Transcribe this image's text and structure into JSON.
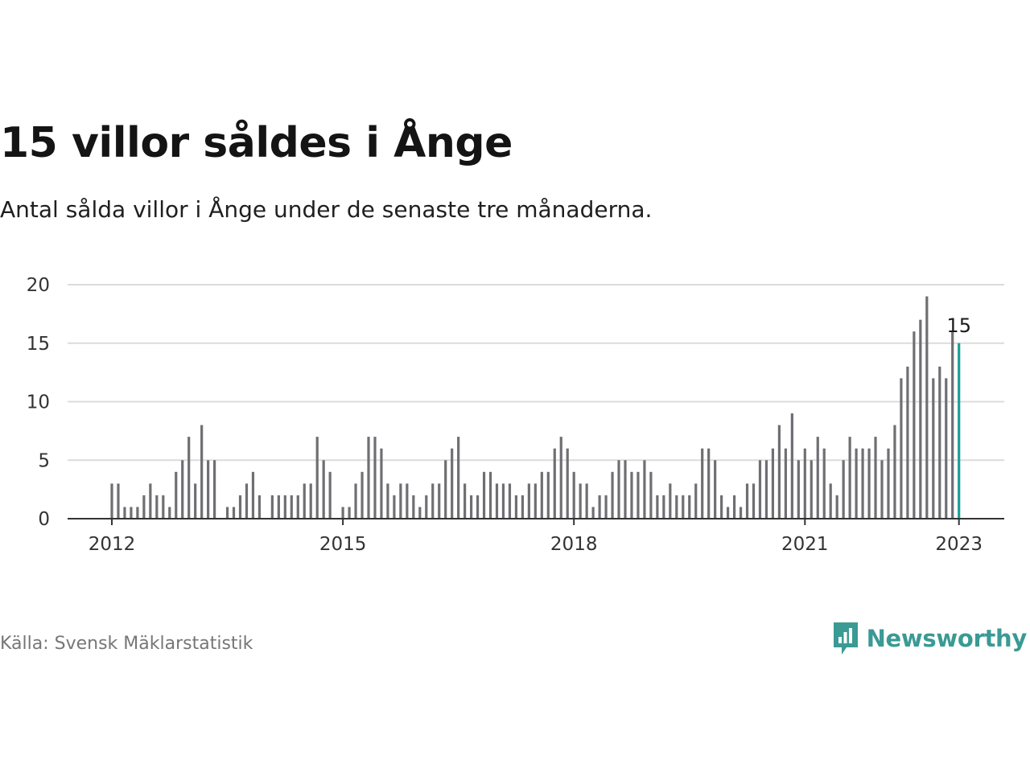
{
  "title": "15 villor såldes i Ånge",
  "subtitle": "Antal sålda villor i Ånge under de senaste tre månaderna.",
  "source": "Källa: Svensk Mäklarstatistik",
  "brand": {
    "name": "Newsworthy",
    "icon": "newsworthy-logo-icon",
    "color": "#3a9a94"
  },
  "chart_data": {
    "type": "bar",
    "colors": {
      "bar": "#6f6f73",
      "highlight": "#1a9e96",
      "grid": "#dcdcdc",
      "axis": "#333333"
    },
    "ylim": [
      0,
      20
    ],
    "yticks": [
      "0",
      "5",
      "10",
      "15",
      "20"
    ],
    "xticks": [
      {
        "label": "2012",
        "month": 0
      },
      {
        "label": "2015",
        "month": 36
      },
      {
        "label": "2018",
        "month": 72
      },
      {
        "label": "2021",
        "month": 108
      },
      {
        "label": "2023",
        "month": 132
      }
    ],
    "start_label": "2012-01",
    "values": [
      3,
      3,
      1,
      1,
      1,
      2,
      3,
      2,
      2,
      1,
      4,
      5,
      7,
      3,
      8,
      5,
      5,
      0,
      1,
      1,
      2,
      3,
      4,
      2,
      0,
      2,
      2,
      2,
      2,
      2,
      3,
      3,
      7,
      5,
      4,
      0,
      1,
      1,
      3,
      4,
      7,
      7,
      6,
      3,
      2,
      3,
      3,
      2,
      1,
      2,
      3,
      3,
      5,
      6,
      7,
      3,
      2,
      2,
      4,
      4,
      3,
      3,
      3,
      2,
      2,
      3,
      3,
      4,
      4,
      6,
      7,
      6,
      4,
      3,
      3,
      1,
      2,
      2,
      4,
      5,
      5,
      4,
      4,
      5,
      4,
      2,
      2,
      3,
      2,
      2,
      2,
      3,
      6,
      6,
      5,
      2,
      1,
      2,
      1,
      3,
      3,
      5,
      5,
      6,
      8,
      6,
      9,
      5,
      6,
      5,
      7,
      6,
      3,
      2,
      5,
      7,
      6,
      6,
      6,
      7,
      5,
      6,
      8,
      12,
      13,
      16,
      17,
      19,
      12,
      13,
      12,
      16,
      15
    ],
    "highlight_label": "15"
  }
}
